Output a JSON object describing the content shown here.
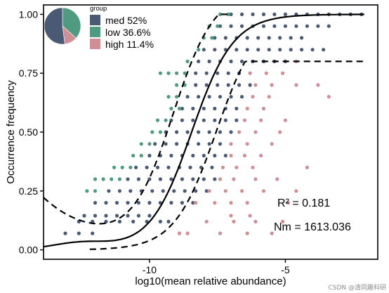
{
  "chart_data": {
    "type": "scatter",
    "title": "",
    "xlabel": "log10(mean relative abundance)",
    "ylabel": "Occurrence frequency",
    "xlim": [
      -13.9,
      -1.6
    ],
    "ylim": [
      -0.04,
      1.04
    ],
    "x_ticks": [
      {
        "value": -10,
        "label": "-10"
      },
      {
        "value": -5,
        "label": "-5"
      }
    ],
    "y_ticks": [
      {
        "value": 0.0,
        "label": "0.00"
      },
      {
        "value": 0.25,
        "label": "0.25"
      },
      {
        "value": 0.5,
        "label": "0.50"
      },
      {
        "value": 0.75,
        "label": "0.75"
      },
      {
        "value": 1.0,
        "label": "1.00"
      }
    ],
    "grid": false,
    "legend": {
      "title": "group",
      "placement": "top-left",
      "entries": [
        {
          "label": "med 52%",
          "color": "#4a5a74",
          "share": 0.52
        },
        {
          "label": "low 36.6%",
          "color": "#4f9a80",
          "share": 0.366
        },
        {
          "label": "high 11.4%",
          "color": "#cf8f95",
          "share": 0.114
        }
      ]
    },
    "colors": {
      "med": "#4a5a74",
      "low": "#4f9a80",
      "high": "#cf8f95"
    },
    "fit": {
      "type": "neutral community model",
      "center_x": -8.45,
      "upper_asymptote": 1.0
    },
    "confidence_band": {
      "type": "dashed",
      "upper_asymptote": 0.8
    },
    "annotations": [
      {
        "label": "R² =  0.181"
      },
      {
        "label": "Nm =  1613.036"
      }
    ],
    "series": [
      {
        "group": "med",
        "rows": [
          {
            "y": 0.07,
            "x": [
              -13.1,
              -12.6,
              -12.1
            ]
          },
          {
            "y": 0.12,
            "x": [
              -12.6,
              -12.1,
              -11.6,
              -11.1,
              -10.6,
              -10.1,
              -9.6,
              -9.3
            ]
          },
          {
            "y": 0.145,
            "x": [
              -12.4,
              -12.0,
              -11.6,
              -11.2,
              -10.8,
              -10.4,
              -10.0
            ]
          },
          {
            "y": 0.2,
            "x": [
              -12.0,
              -11.6,
              -11.2,
              -10.8,
              -10.4,
              -10.0,
              -9.6,
              -9.2,
              -8.8,
              -8.4
            ]
          },
          {
            "y": 0.25,
            "x": [
              -11.5,
              -11.1,
              -10.7,
              -10.3,
              -9.9,
              -9.5,
              -9.1,
              -8.7,
              -8.3,
              -7.9
            ]
          },
          {
            "y": 0.3,
            "x": [
              -10.8,
              -10.4,
              -10.0,
              -9.6,
              -9.2,
              -8.8,
              -8.4,
              -8.0,
              -7.6
            ]
          },
          {
            "y": 0.35,
            "x": [
              -10.5,
              -10.1,
              -9.7,
              -9.3,
              -8.9,
              -8.5,
              -8.1,
              -7.7
            ]
          },
          {
            "y": 0.4,
            "x": [
              -10.0,
              -9.6,
              -9.2,
              -8.8,
              -8.4,
              -8.0,
              -7.6,
              -7.2
            ]
          },
          {
            "y": 0.45,
            "x": [
              -9.8,
              -9.4,
              -9.0,
              -8.6,
              -8.2,
              -7.8,
              -7.4
            ]
          },
          {
            "y": 0.5,
            "x": [
              -9.4,
              -9.0,
              -8.6,
              -8.2,
              -7.8,
              -7.4,
              -7.0
            ]
          },
          {
            "y": 0.55,
            "x": [
              -9.2,
              -8.8,
              -8.4,
              -8.0,
              -7.6,
              -7.2,
              -6.8
            ]
          },
          {
            "y": 0.6,
            "x": [
              -8.8,
              -8.4,
              -8.0,
              -7.6,
              -7.2,
              -6.8
            ]
          },
          {
            "y": 0.65,
            "x": [
              -8.6,
              -8.2,
              -7.8,
              -7.4,
              -7.0,
              -6.6
            ]
          },
          {
            "y": 0.7,
            "x": [
              -8.3,
              -7.9,
              -7.5,
              -7.1,
              -6.7,
              -6.3
            ]
          },
          {
            "y": 0.75,
            "x": [
              -8.3,
              -7.9,
              -7.5,
              -7.1,
              -6.7
            ]
          },
          {
            "y": 0.8,
            "x": [
              -8.2,
              -7.8,
              -7.4,
              -7.0,
              -6.6,
              -6.2,
              -5.8,
              -5.4,
              -5.0
            ]
          },
          {
            "y": 0.85,
            "x": [
              -8.0,
              -7.6,
              -7.2,
              -6.8,
              -6.4,
              -6.0,
              -5.6,
              -5.2,
              -4.8,
              -4.4,
              -4.0,
              -3.6
            ]
          },
          {
            "y": 0.9,
            "x": [
              -7.6,
              -7.2,
              -6.8,
              -6.4,
              -6.0,
              -5.6,
              -5.2,
              -4.8,
              -4.4
            ]
          },
          {
            "y": 0.95,
            "x": [
              -7.4,
              -7.0,
              -6.6,
              -6.2,
              -5.8,
              -5.4,
              -5.0,
              -4.6,
              -4.2,
              -3.8,
              -3.4
            ]
          },
          {
            "y": 1.0,
            "x": [
              -7.0,
              -6.6,
              -6.2,
              -5.8,
              -5.4,
              -5.0,
              -4.6,
              -4.2,
              -3.8,
              -3.4,
              -3.0,
              -2.6,
              -2.2
            ]
          }
        ]
      },
      {
        "group": "low",
        "rows": [
          {
            "y": 0.25,
            "x": [
              -12.3,
              -12.0
            ]
          },
          {
            "y": 0.3,
            "x": [
              -12.0,
              -11.7,
              -11.4,
              -11.1
            ]
          },
          {
            "y": 0.35,
            "x": [
              -11.3,
              -11.0,
              -10.7
            ]
          },
          {
            "y": 0.4,
            "x": [
              -10.6,
              -10.3
            ]
          },
          {
            "y": 0.45,
            "x": [
              -10.3,
              -10.0
            ]
          },
          {
            "y": 0.5,
            "x": [
              -9.9,
              -9.6
            ]
          },
          {
            "y": 0.55,
            "x": [
              -9.7,
              -9.4
            ]
          },
          {
            "y": 0.6,
            "x": [
              -9.2,
              -8.9
            ]
          },
          {
            "y": 0.65,
            "x": [
              -9.3,
              -9.0
            ]
          },
          {
            "y": 0.7,
            "x": [
              -9.0,
              -8.7
            ]
          },
          {
            "y": 0.75,
            "x": [
              -9.6,
              -9.3,
              -9.0,
              -8.7
            ]
          },
          {
            "y": 0.8,
            "x": [
              -8.6
            ]
          },
          {
            "y": 0.85,
            "x": [
              -8.2
            ]
          },
          {
            "y": 0.9,
            "x": [
              -8.0,
              -7.7
            ]
          },
          {
            "y": 0.95,
            "x": [
              -7.8,
              -7.5
            ]
          },
          {
            "y": 1.0,
            "x": [
              -7.4,
              -7.1
            ]
          }
        ]
      },
      {
        "group": "high",
        "rows": [
          {
            "y": 0.07,
            "x": [
              -8.9,
              -8.6,
              -7.4,
              -6.4,
              -5.5
            ]
          },
          {
            "y": 0.12,
            "x": [
              -7.9,
              -6.9,
              -6.1,
              -5.1
            ]
          },
          {
            "y": 0.145,
            "x": [
              -7.0,
              -6.3
            ]
          },
          {
            "y": 0.2,
            "x": [
              -8.3,
              -7.6,
              -7.0,
              -6.4,
              -4.9
            ]
          },
          {
            "y": 0.25,
            "x": [
              -7.8,
              -7.2,
              -6.6,
              -5.8,
              -4.6
            ]
          },
          {
            "y": 0.3,
            "x": [
              -7.4,
              -6.9,
              -6.1,
              -5.3
            ]
          },
          {
            "y": 0.35,
            "x": [
              -7.3,
              -6.8,
              -6.2,
              -4.2
            ]
          },
          {
            "y": 0.4,
            "x": [
              -7.0,
              -6.5,
              -5.9
            ]
          },
          {
            "y": 0.45,
            "x": [
              -7.0,
              -6.4,
              -5.5
            ]
          },
          {
            "y": 0.5,
            "x": [
              -6.7,
              -6.1,
              -5.2
            ]
          },
          {
            "y": 0.55,
            "x": [
              -6.5,
              -5.9,
              -5.0
            ]
          },
          {
            "y": 0.6,
            "x": [
              -6.4,
              -5.8
            ]
          },
          {
            "y": 0.65,
            "x": [
              -6.2,
              -5.6,
              -3.4
            ]
          },
          {
            "y": 0.7,
            "x": [
              -6.1,
              -5.5,
              -4.6,
              -3.8
            ]
          },
          {
            "y": 0.75,
            "x": [
              -6.3,
              -5.7,
              -5.1
            ]
          },
          {
            "y": 0.8,
            "x": [
              -4.6
            ]
          }
        ]
      }
    ]
  },
  "watermark": "CSDN @清同趣科研"
}
